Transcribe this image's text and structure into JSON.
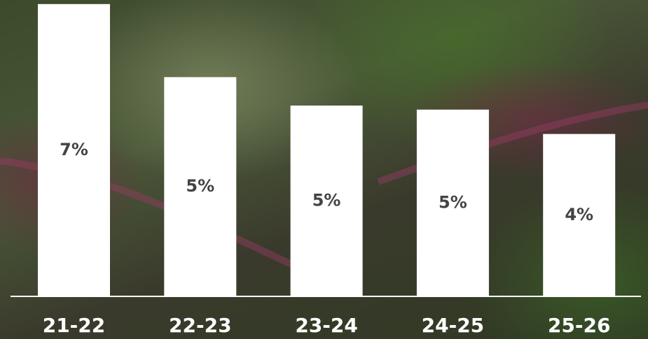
{
  "chart_data": {
    "type": "bar",
    "categories": [
      "21-22",
      "22-23",
      "23-24",
      "24-25",
      "25-26"
    ],
    "values": [
      7.2,
      5.4,
      4.7,
      4.6,
      4.0
    ],
    "value_labels": [
      "7%",
      "5%",
      "5%",
      "5%",
      "4%"
    ],
    "color": "#ffffff",
    "ylim": [
      0,
      7.3
    ]
  }
}
